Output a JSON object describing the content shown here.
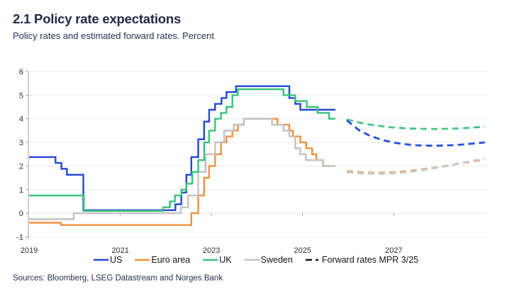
{
  "header": {
    "title": "2.1 Policy rate expectations",
    "subtitle": "Policy rates and estimated forward rates. Percent"
  },
  "footer": {
    "sources": "Sources: Bloomberg, LSEG Datastream and Norges Bank"
  },
  "colors": {
    "us": "#2247d6",
    "euro_area": "#f0913f",
    "uk": "#37c27b",
    "sweden": "#c2c2c2",
    "us_forward": "#2450e0",
    "euro_area_forward": "#eca873",
    "uk_forward": "#45c687",
    "sweden_forward": "#c8c8c8",
    "forward_legend": "#141414",
    "heading_text": "#1f2a44",
    "axis_text": "#2d2d2d",
    "grid": "#ebebeb",
    "axis": "#a3a3a3"
  },
  "chart_data": {
    "type": "line",
    "title": "2.1 Policy rate expectations",
    "subtitle": "Policy rates and estimated forward rates. Percent",
    "ylabel": "Percent",
    "xlim": [
      2019,
      2029.05
    ],
    "ylim": [
      -1,
      6
    ],
    "x_ticks": [
      2019,
      2021,
      2023,
      2025,
      2027
    ],
    "y_ticks": [
      -1,
      0,
      1,
      2,
      3,
      4,
      5,
      6
    ],
    "grid": "horizontal",
    "x_axis_at_zero": true,
    "legend_position": "bottom",
    "series": [
      {
        "name": "US",
        "type": "step",
        "color": "#2247d6",
        "points": [
          [
            2019.0,
            2.38
          ],
          [
            2019.58,
            2.13
          ],
          [
            2019.71,
            1.88
          ],
          [
            2019.83,
            1.63
          ],
          [
            2020.19,
            0.13
          ],
          [
            2022.21,
            0.38
          ],
          [
            2022.34,
            0.88
          ],
          [
            2022.45,
            1.63
          ],
          [
            2022.56,
            2.38
          ],
          [
            2022.71,
            3.13
          ],
          [
            2022.84,
            3.88
          ],
          [
            2022.95,
            4.38
          ],
          [
            2023.08,
            4.63
          ],
          [
            2023.22,
            4.88
          ],
          [
            2023.33,
            5.13
          ],
          [
            2023.54,
            5.38
          ],
          [
            2024.71,
            4.88
          ],
          [
            2024.84,
            4.63
          ],
          [
            2024.95,
            4.38
          ],
          [
            2025.72,
            4.38
          ]
        ]
      },
      {
        "name": "Euro area",
        "type": "step",
        "color": "#f0913f",
        "points": [
          [
            2019.0,
            -0.4
          ],
          [
            2019.7,
            -0.5
          ],
          [
            2022.56,
            0.0
          ],
          [
            2022.71,
            0.75
          ],
          [
            2022.84,
            1.5
          ],
          [
            2022.95,
            2.0
          ],
          [
            2023.08,
            2.5
          ],
          [
            2023.21,
            3.0
          ],
          [
            2023.33,
            3.25
          ],
          [
            2023.46,
            3.5
          ],
          [
            2023.58,
            3.75
          ],
          [
            2023.71,
            4.0
          ],
          [
            2024.45,
            3.75
          ],
          [
            2024.71,
            3.5
          ],
          [
            2024.79,
            3.25
          ],
          [
            2024.95,
            3.0
          ],
          [
            2025.08,
            2.75
          ],
          [
            2025.21,
            2.5
          ],
          [
            2025.3,
            2.25
          ],
          [
            2025.45,
            2.0
          ],
          [
            2025.72,
            2.0
          ]
        ]
      },
      {
        "name": "Sweden",
        "type": "step",
        "color": "#c2c2c2",
        "points": [
          [
            2019.0,
            -0.25
          ],
          [
            2019.98,
            0.0
          ],
          [
            2022.33,
            0.25
          ],
          [
            2022.49,
            0.75
          ],
          [
            2022.71,
            1.75
          ],
          [
            2022.87,
            2.5
          ],
          [
            2023.08,
            3.0
          ],
          [
            2023.28,
            3.5
          ],
          [
            2023.49,
            3.75
          ],
          [
            2023.71,
            4.0
          ],
          [
            2024.33,
            3.75
          ],
          [
            2024.58,
            3.5
          ],
          [
            2024.71,
            3.25
          ],
          [
            2024.84,
            2.75
          ],
          [
            2024.95,
            2.5
          ],
          [
            2025.07,
            2.25
          ],
          [
            2025.45,
            2.0
          ],
          [
            2025.72,
            2.0
          ]
        ]
      },
      {
        "name": "UK",
        "type": "step",
        "color": "#37c27b",
        "points": [
          [
            2019.0,
            0.75
          ],
          [
            2020.2,
            0.1
          ],
          [
            2021.94,
            0.25
          ],
          [
            2022.09,
            0.5
          ],
          [
            2022.2,
            0.75
          ],
          [
            2022.34,
            1.0
          ],
          [
            2022.45,
            1.25
          ],
          [
            2022.58,
            1.75
          ],
          [
            2022.71,
            2.25
          ],
          [
            2022.84,
            3.0
          ],
          [
            2022.95,
            3.5
          ],
          [
            2023.08,
            4.0
          ],
          [
            2023.21,
            4.25
          ],
          [
            2023.33,
            4.5
          ],
          [
            2023.46,
            5.0
          ],
          [
            2023.58,
            5.25
          ],
          [
            2024.58,
            5.0
          ],
          [
            2024.84,
            4.75
          ],
          [
            2025.09,
            4.5
          ],
          [
            2025.33,
            4.25
          ],
          [
            2025.58,
            4.0
          ],
          [
            2025.72,
            4.0
          ]
        ]
      },
      {
        "name": "UK forward rates MPR 3/25",
        "type": "dashed",
        "color": "#45c687",
        "points": [
          [
            2025.97,
            3.97
          ],
          [
            2026.25,
            3.84
          ],
          [
            2026.5,
            3.75
          ],
          [
            2026.75,
            3.68
          ],
          [
            2027.0,
            3.63
          ],
          [
            2027.25,
            3.6
          ],
          [
            2027.5,
            3.58
          ],
          [
            2027.75,
            3.57
          ],
          [
            2028.0,
            3.57
          ],
          [
            2028.25,
            3.58
          ],
          [
            2028.5,
            3.6
          ],
          [
            2028.75,
            3.63
          ],
          [
            2029.0,
            3.67
          ]
        ]
      },
      {
        "name": "US forward rates MPR 3/25",
        "type": "dashed",
        "color": "#2450e0",
        "points": [
          [
            2025.97,
            3.93
          ],
          [
            2026.25,
            3.5
          ],
          [
            2026.5,
            3.26
          ],
          [
            2026.75,
            3.1
          ],
          [
            2027.0,
            2.99
          ],
          [
            2027.25,
            2.92
          ],
          [
            2027.5,
            2.88
          ],
          [
            2027.75,
            2.86
          ],
          [
            2028.0,
            2.86
          ],
          [
            2028.25,
            2.88
          ],
          [
            2028.5,
            2.91
          ],
          [
            2028.75,
            2.95
          ],
          [
            2029.0,
            3.0
          ]
        ]
      },
      {
        "name": "Euro area forward rates MPR 3/25",
        "type": "dashed",
        "color": "#eca873",
        "points": [
          [
            2025.97,
            1.79
          ],
          [
            2026.25,
            1.74
          ],
          [
            2026.5,
            1.72
          ],
          [
            2026.75,
            1.72
          ],
          [
            2027.0,
            1.74
          ],
          [
            2027.25,
            1.78
          ],
          [
            2027.5,
            1.83
          ],
          [
            2027.75,
            1.89
          ],
          [
            2028.0,
            1.96
          ],
          [
            2028.25,
            2.04
          ],
          [
            2028.5,
            2.12
          ],
          [
            2028.75,
            2.2
          ],
          [
            2029.0,
            2.27
          ]
        ]
      },
      {
        "name": "Sweden forward rates MPR 3/25",
        "type": "dashed",
        "color": "#c8c8c8",
        "points": [
          [
            2025.97,
            1.74
          ],
          [
            2026.25,
            1.69
          ],
          [
            2026.5,
            1.67
          ],
          [
            2026.75,
            1.67
          ],
          [
            2027.0,
            1.69
          ],
          [
            2027.25,
            1.73
          ],
          [
            2027.5,
            1.79
          ],
          [
            2027.75,
            1.86
          ],
          [
            2028.0,
            1.94
          ],
          [
            2028.25,
            2.03
          ],
          [
            2028.5,
            2.13
          ],
          [
            2028.75,
            2.23
          ],
          [
            2029.0,
            2.31
          ]
        ]
      }
    ],
    "legend": [
      {
        "label": "US",
        "color": "#2247d6",
        "dash": false
      },
      {
        "label": "Euro area",
        "color": "#f0913f",
        "dash": false
      },
      {
        "label": "UK",
        "color": "#37c27b",
        "dash": false
      },
      {
        "label": "Sweden",
        "color": "#c2c2c2",
        "dash": false
      },
      {
        "label": "Forward rates MPR 3/25",
        "color": "#141414",
        "dash": true
      }
    ]
  }
}
